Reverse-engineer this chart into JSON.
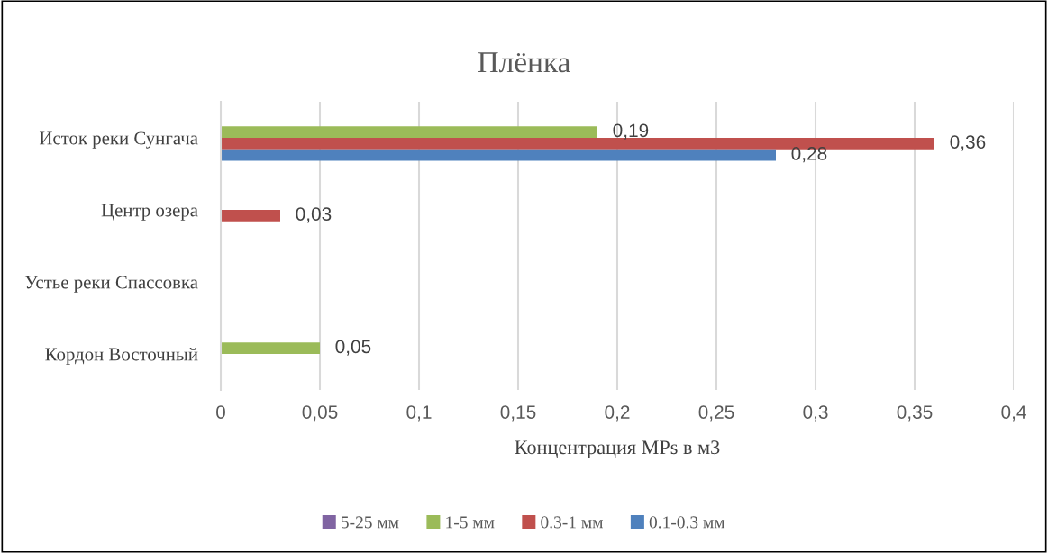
{
  "chart_data": {
    "type": "bar",
    "orientation": "horizontal",
    "title": "Плёнка",
    "xlabel": "Концентрация MPs в м3",
    "categories": [
      "Исток реки Сунгача",
      "Центр озера",
      "Устье реки Спассовка",
      "Кордон Восточный"
    ],
    "series": [
      {
        "name": "5-25 мм",
        "color": "#8064a2",
        "values": [
          null,
          null,
          null,
          null
        ],
        "value_labels": [
          null,
          null,
          null,
          null
        ]
      },
      {
        "name": "1-5 мм",
        "color": "#9bbb59",
        "values": [
          0.19,
          null,
          null,
          0.05
        ],
        "value_labels": [
          "0,19",
          null,
          null,
          "0,05"
        ]
      },
      {
        "name": "0.3-1 мм",
        "color": "#c0504d",
        "values": [
          0.36,
          0.03,
          null,
          null
        ],
        "value_labels": [
          "0,36",
          "0,03",
          null,
          null
        ]
      },
      {
        "name": "0.1-0.3 мм",
        "color": "#4f81bd",
        "values": [
          0.28,
          null,
          null,
          null
        ],
        "value_labels": [
          "0,28",
          null,
          null,
          null
        ]
      }
    ],
    "xlim": [
      0,
      0.4
    ],
    "xticks": [
      0,
      {
        "value": 0.05,
        "label": "0,05"
      },
      {
        "value": 0.1,
        "label": "0,1"
      },
      {
        "value": 0.15,
        "label": "0,15"
      },
      {
        "value": 0.2,
        "label": "0,2"
      },
      {
        "value": 0.25,
        "label": "0,25"
      },
      {
        "value": 0.3,
        "label": "0,3"
      },
      {
        "value": 0.35,
        "label": "0,35"
      },
      {
        "value": 0.4,
        "label": "0,4"
      }
    ],
    "grid": "x",
    "legend": "bottom"
  }
}
